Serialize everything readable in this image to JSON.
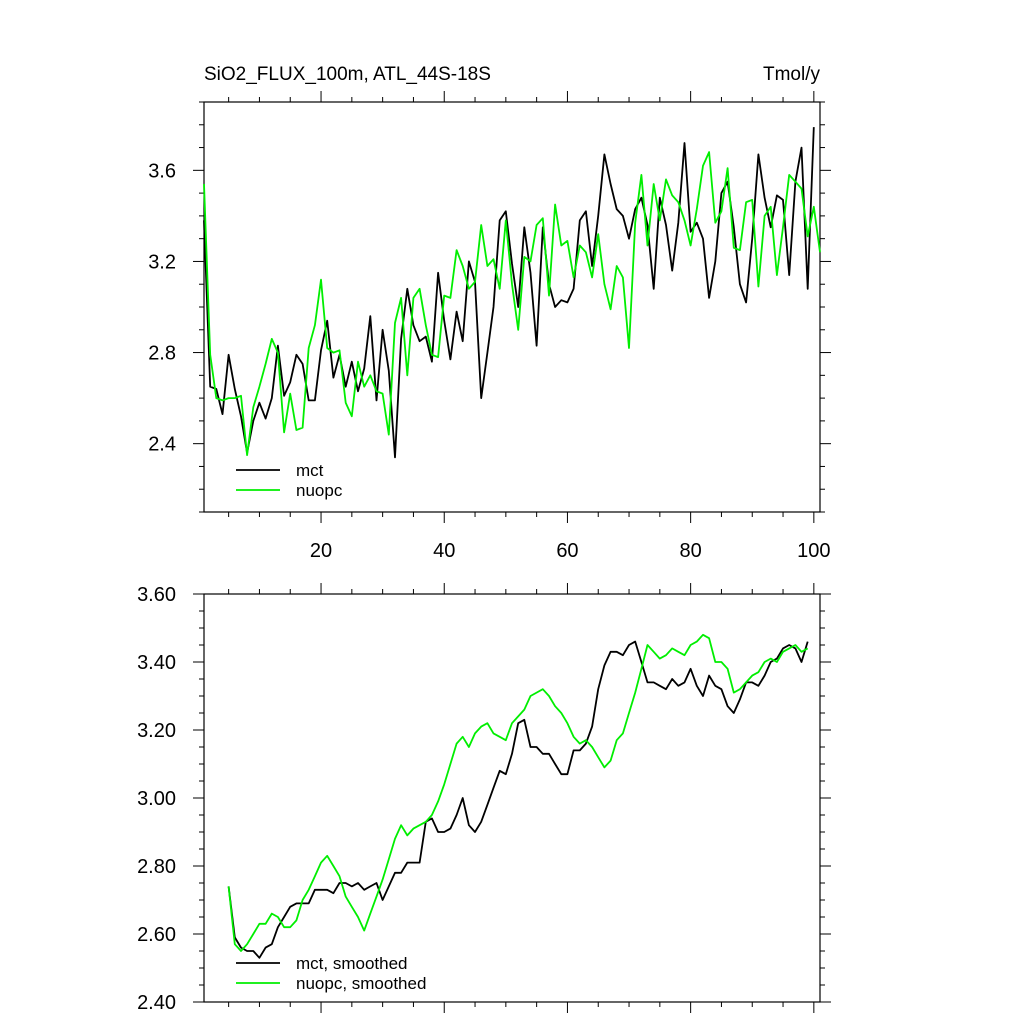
{
  "chart_data": [
    {
      "type": "line",
      "title": "SiO2_FLUX_100m, ATL_44S-18S",
      "units": "Tmol/y",
      "xlabel": "",
      "ylabel": "",
      "xlim": [
        1,
        101
      ],
      "ylim": [
        2.1,
        3.9
      ],
      "x_ticks": [
        20,
        40,
        60,
        80,
        100
      ],
      "y_ticks": [
        2.4,
        2.8,
        3.2,
        3.6
      ],
      "x_tick_labels": [
        "20",
        "40",
        "60",
        "80",
        "100"
      ],
      "y_tick_labels": [
        "2.4",
        "2.8",
        "3.2",
        "3.6"
      ],
      "legend_position": "bottom-left",
      "x_start": 1,
      "grid": false,
      "series": [
        {
          "name": "mct",
          "color": "#000000",
          "values": [
            3.38,
            2.65,
            2.64,
            2.53,
            2.79,
            2.64,
            2.52,
            2.36,
            2.5,
            2.58,
            2.51,
            2.6,
            2.83,
            2.61,
            2.67,
            2.79,
            2.75,
            2.59,
            2.59,
            2.81,
            2.94,
            2.69,
            2.79,
            2.65,
            2.76,
            2.63,
            2.73,
            2.96,
            2.59,
            2.9,
            2.72,
            2.34,
            2.86,
            3.08,
            2.92,
            2.85,
            2.87,
            2.76,
            3.15,
            2.94,
            2.77,
            2.98,
            2.85,
            3.2,
            3.11,
            2.6,
            2.8,
            3.0,
            3.38,
            3.42,
            3.19,
            3.0,
            3.35,
            3.15,
            2.83,
            3.35,
            3.1,
            3.0,
            3.03,
            3.02,
            3.08,
            3.38,
            3.42,
            3.18,
            3.4,
            3.67,
            3.54,
            3.43,
            3.4,
            3.3,
            3.43,
            3.48,
            3.36,
            3.08,
            3.48,
            3.36,
            3.16,
            3.37,
            3.72,
            3.33,
            3.37,
            3.3,
            3.04,
            3.2,
            3.5,
            3.55,
            3.35,
            3.1,
            3.02,
            3.3,
            3.67,
            3.48,
            3.35,
            3.49,
            3.47,
            3.14,
            3.55,
            3.7,
            3.08,
            3.79
          ]
        },
        {
          "name": "nuopc",
          "color": "#00ee00",
          "values": [
            3.54,
            2.79,
            2.6,
            2.59,
            2.6,
            2.6,
            2.61,
            2.35,
            2.56,
            2.65,
            2.75,
            2.86,
            2.8,
            2.45,
            2.62,
            2.46,
            2.47,
            2.82,
            2.92,
            3.12,
            2.82,
            2.8,
            2.81,
            2.58,
            2.52,
            2.76,
            2.65,
            2.7,
            2.63,
            2.62,
            2.44,
            2.93,
            3.04,
            2.7,
            3.04,
            3.08,
            2.92,
            2.79,
            2.78,
            3.05,
            3.04,
            3.25,
            3.18,
            3.08,
            3.11,
            3.36,
            3.18,
            3.21,
            3.08,
            3.38,
            3.1,
            2.9,
            3.22,
            3.2,
            3.36,
            3.39,
            3.05,
            3.45,
            3.27,
            3.29,
            3.13,
            3.27,
            3.24,
            3.13,
            3.32,
            3.1,
            2.99,
            3.18,
            3.13,
            2.82,
            3.37,
            3.58,
            3.27,
            3.54,
            3.38,
            3.56,
            3.49,
            3.46,
            3.38,
            3.27,
            3.43,
            3.62,
            3.68,
            3.37,
            3.42,
            3.61,
            3.26,
            3.25,
            3.46,
            3.47,
            3.09,
            3.4,
            3.44,
            3.14,
            3.35,
            3.58,
            3.55,
            3.52,
            3.31,
            3.44,
            3.24
          ]
        }
      ]
    },
    {
      "type": "line",
      "title": "",
      "xlabel": "",
      "ylabel": "",
      "xlim": [
        1,
        101
      ],
      "ylim": [
        2.4,
        3.6
      ],
      "x_ticks": [
        20,
        40,
        60,
        80,
        100
      ],
      "y_ticks": [
        2.4,
        2.6,
        2.8,
        3.0,
        3.2,
        3.4,
        3.6
      ],
      "x_tick_labels": [],
      "y_tick_labels": [
        "2.40",
        "2.60",
        "2.80",
        "3.00",
        "3.20",
        "3.40",
        "3.60"
      ],
      "legend_position": "bottom-left",
      "x_start": 5,
      "grid": false,
      "series": [
        {
          "name": "mct, smoothed",
          "color": "#000000",
          "values": [
            2.74,
            2.59,
            2.56,
            2.55,
            2.55,
            2.53,
            2.56,
            2.57,
            2.62,
            2.65,
            2.68,
            2.69,
            2.69,
            2.69,
            2.73,
            2.73,
            2.73,
            2.72,
            2.75,
            2.75,
            2.74,
            2.75,
            2.73,
            2.74,
            2.75,
            2.7,
            2.74,
            2.78,
            2.78,
            2.81,
            2.81,
            2.81,
            2.93,
            2.94,
            2.9,
            2.9,
            2.91,
            2.95,
            3.0,
            2.92,
            2.9,
            2.93,
            2.98,
            3.03,
            3.08,
            3.07,
            3.13,
            3.22,
            3.23,
            3.15,
            3.15,
            3.13,
            3.13,
            3.1,
            3.07,
            3.07,
            3.14,
            3.14,
            3.16,
            3.21,
            3.32,
            3.39,
            3.43,
            3.43,
            3.42,
            3.45,
            3.46,
            3.4,
            3.34,
            3.34,
            3.33,
            3.32,
            3.35,
            3.33,
            3.34,
            3.38,
            3.33,
            3.3,
            3.36,
            3.33,
            3.32,
            3.27,
            3.25,
            3.29,
            3.34,
            3.34,
            3.33,
            3.36,
            3.4,
            3.41,
            3.44,
            3.45,
            3.44,
            3.4,
            3.46
          ]
        },
        {
          "name": "nuopc, smoothed",
          "color": "#00ee00",
          "values": [
            2.74,
            2.57,
            2.55,
            2.57,
            2.6,
            2.63,
            2.63,
            2.66,
            2.65,
            2.62,
            2.62,
            2.64,
            2.7,
            2.73,
            2.77,
            2.81,
            2.83,
            2.8,
            2.77,
            2.71,
            2.68,
            2.65,
            2.61,
            2.66,
            2.71,
            2.76,
            2.82,
            2.88,
            2.92,
            2.89,
            2.91,
            2.92,
            2.93,
            2.95,
            2.99,
            3.04,
            3.1,
            3.16,
            3.18,
            3.15,
            3.19,
            3.21,
            3.22,
            3.19,
            3.18,
            3.17,
            3.22,
            3.24,
            3.26,
            3.3,
            3.31,
            3.32,
            3.3,
            3.27,
            3.25,
            3.22,
            3.18,
            3.16,
            3.17,
            3.15,
            3.12,
            3.09,
            3.11,
            3.17,
            3.19,
            3.25,
            3.31,
            3.38,
            3.45,
            3.43,
            3.41,
            3.42,
            3.44,
            3.43,
            3.42,
            3.45,
            3.46,
            3.48,
            3.47,
            3.4,
            3.4,
            3.38,
            3.31,
            3.32,
            3.34,
            3.36,
            3.37,
            3.4,
            3.41,
            3.4,
            3.43,
            3.44,
            3.45,
            3.43,
            3.44
          ]
        }
      ]
    }
  ]
}
